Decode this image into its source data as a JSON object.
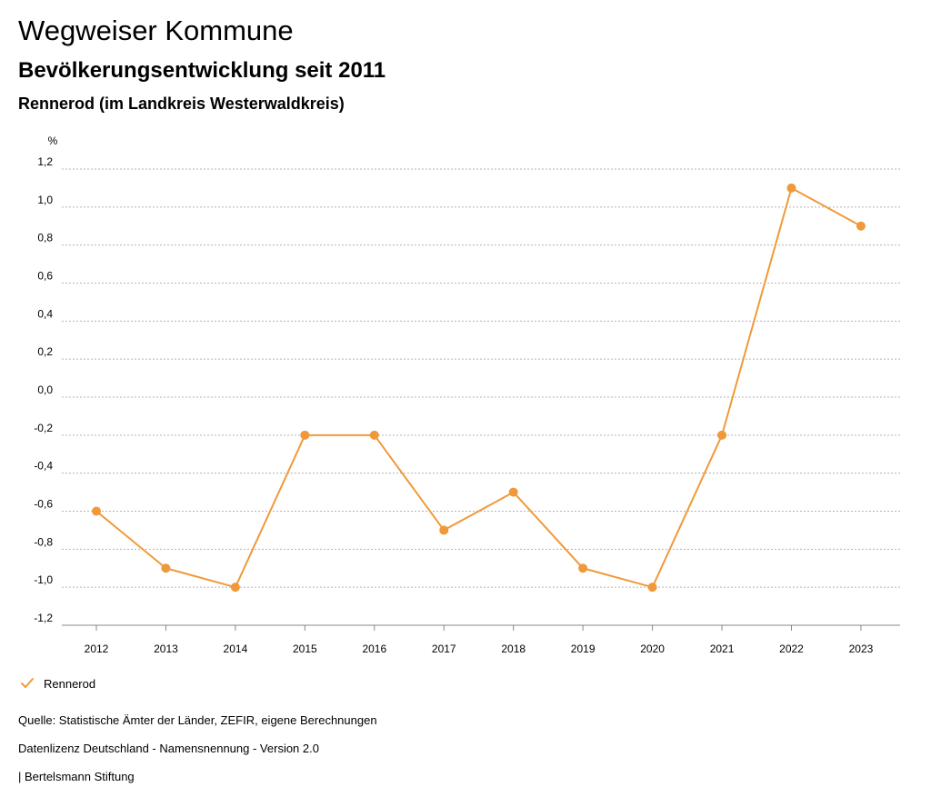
{
  "header": {
    "title": "Wegweiser Kommune",
    "subtitle": "Bevölkerungsentwicklung seit 2011",
    "region": "Rennerod (im Landkreis Westerwaldkreis)"
  },
  "legend": {
    "label": "Rennerod",
    "icon": "check-icon"
  },
  "footer": {
    "source": "Quelle: Statistische Ämter der Länder, ZEFIR, eigene Berechnungen",
    "license": "Datenlizenz Deutschland - Namensnennung - Version 2.0",
    "publisher": "| Bertelsmann Stiftung"
  },
  "colors": {
    "series": "#f0993a",
    "grid": "#b3b3b3"
  },
  "chart_data": {
    "type": "line",
    "ylabel": "%",
    "ylim": [
      -1.2,
      1.2
    ],
    "yticks": [
      1.2,
      1.0,
      0.8,
      0.6,
      0.4,
      0.2,
      0.0,
      -0.2,
      -0.4,
      -0.6,
      -0.8,
      -1.0,
      -1.2
    ],
    "ytick_labels": [
      "1,2",
      "1,0",
      "0,8",
      "0,6",
      "0,4",
      "0,2",
      "0,0",
      "-0,2",
      "-0,4",
      "-0,6",
      "-0,8",
      "-1,0",
      "-1,2"
    ],
    "categories": [
      "2012",
      "2013",
      "2014",
      "2015",
      "2016",
      "2017",
      "2018",
      "2019",
      "2020",
      "2021",
      "2022",
      "2023"
    ],
    "series": [
      {
        "name": "Rennerod",
        "values": [
          -0.6,
          -0.9,
          -1.0,
          -0.2,
          -0.2,
          -0.7,
          -0.5,
          -0.9,
          -1.0,
          -0.2,
          1.1,
          0.9
        ]
      }
    ],
    "grid": true,
    "legend_position": "bottom-left"
  }
}
